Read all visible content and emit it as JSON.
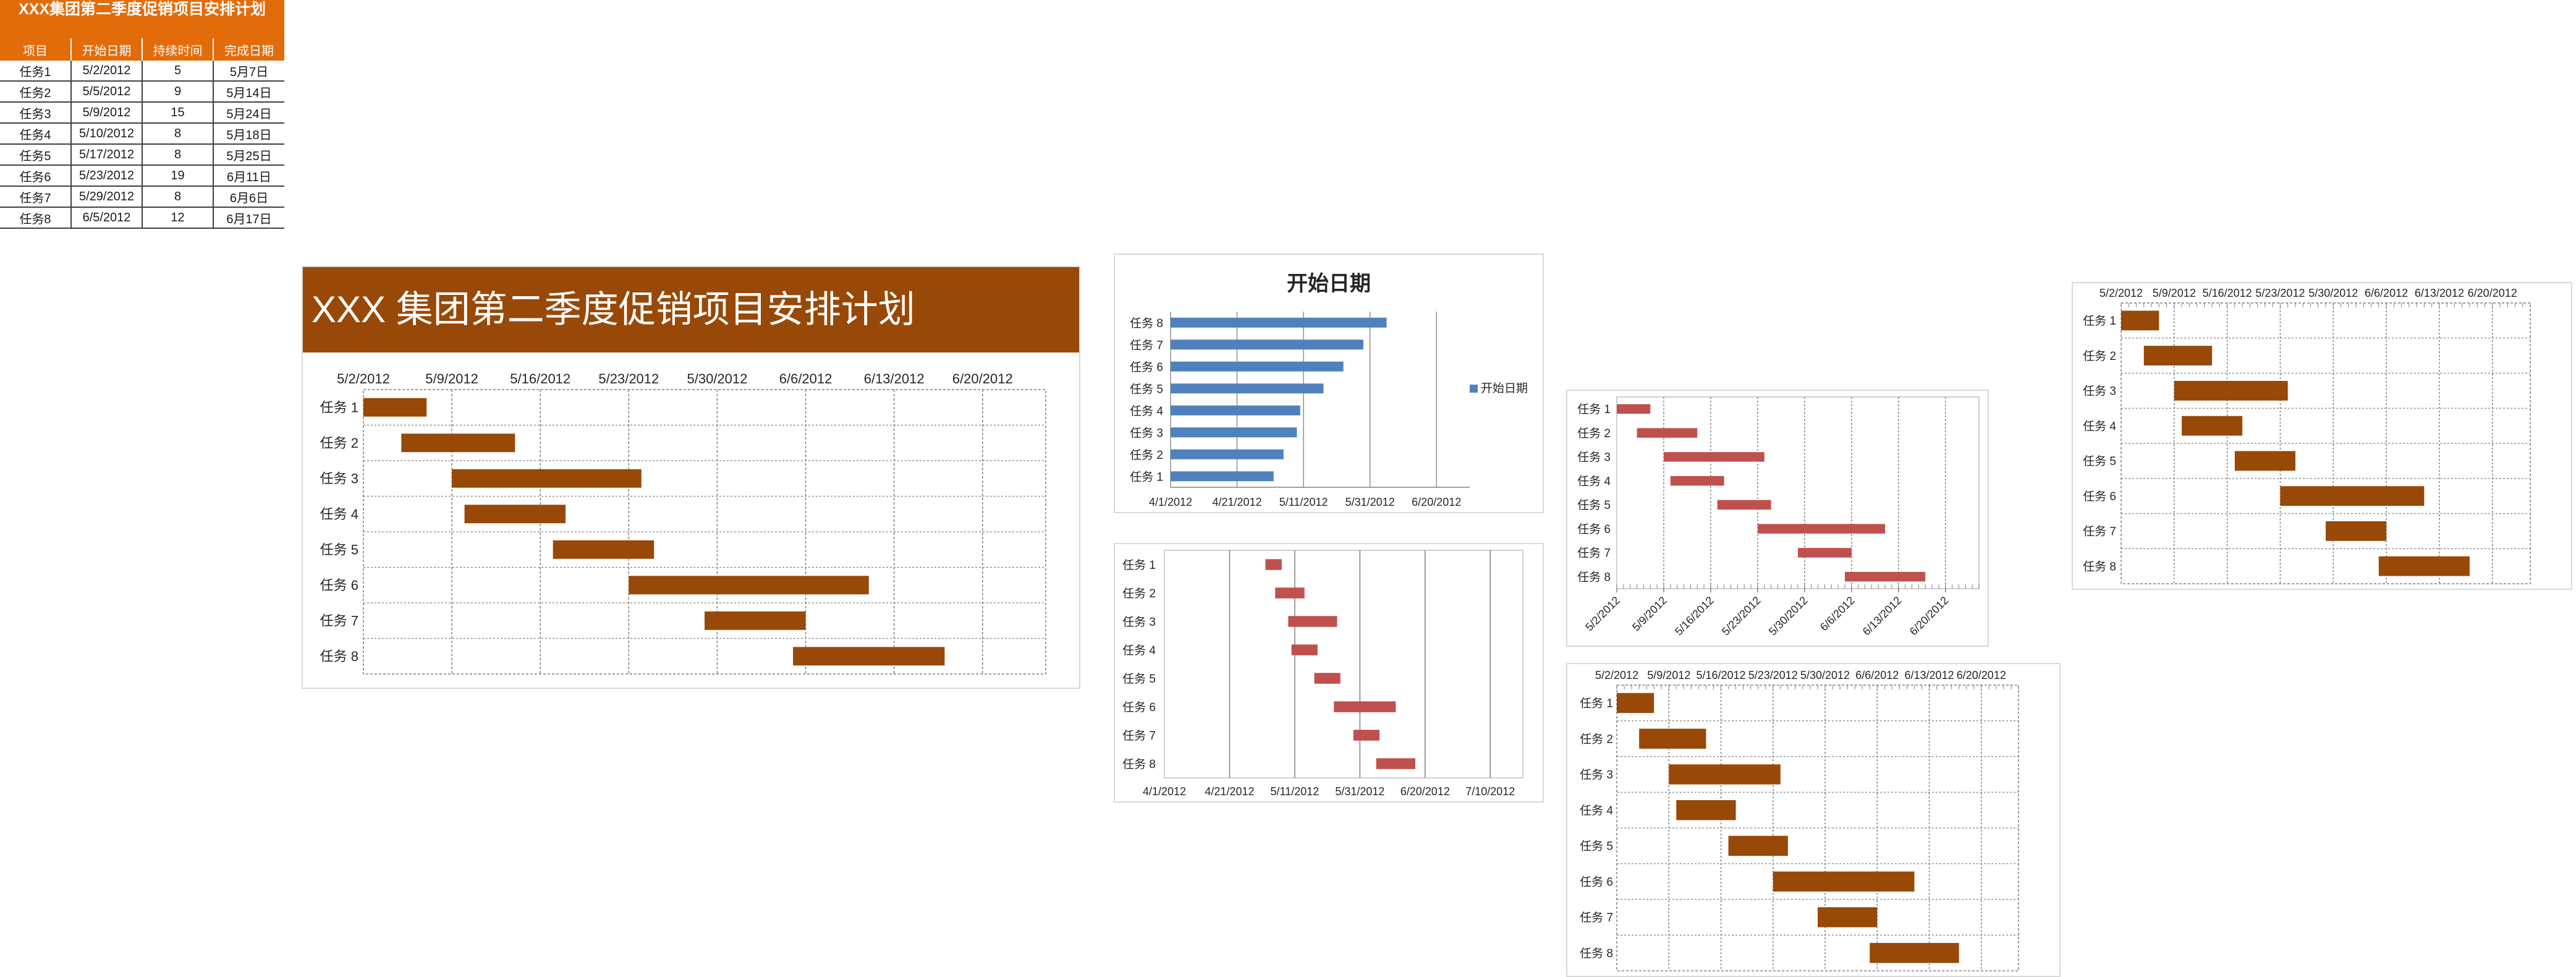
{
  "table": {
    "title": "XXX集团第二季度促销项目安排计划",
    "headers": [
      "项目",
      "开始日期",
      "持续时间",
      "完成日期"
    ],
    "rows": [
      [
        "任务1",
        "5/2/2012",
        "5",
        "5月7日"
      ],
      [
        "任务2",
        "5/5/2012",
        "9",
        "5月14日"
      ],
      [
        "任务3",
        "5/9/2012",
        "15",
        "5月24日"
      ],
      [
        "任务4",
        "5/10/2012",
        "8",
        "5月18日"
      ],
      [
        "任务5",
        "5/17/2012",
        "8",
        "5月25日"
      ],
      [
        "任务6",
        "5/23/2012",
        "19",
        "6月11日"
      ],
      [
        "任务7",
        "5/29/2012",
        "8",
        "6月6日"
      ],
      [
        "任务8",
        "6/5/2012",
        "12",
        "6月17日"
      ]
    ]
  },
  "colors": {
    "table_header": "#e36c0a",
    "gantt_bar": "#984807",
    "start_bar": "#4f81bd",
    "red_bar": "#c0504d"
  },
  "chart_data": [
    {
      "id": "main",
      "type": "bar",
      "title": "XXX 集团第二季度促销项目安排计划",
      "orientation": "horizontal-stacked-gantt",
      "categories": [
        "任务 1",
        "任务 2",
        "任务 3",
        "任务 4",
        "任务 5",
        "任务 6",
        "任务 7",
        "任务 8"
      ],
      "series": [
        {
          "start": [
            "2012-05-02",
            "2012-05-05",
            "2012-05-09",
            "2012-05-10",
            "2012-05-17",
            "2012-05-23",
            "2012-05-29",
            "2012-06-05"
          ],
          "duration_days": [
            5,
            9,
            15,
            8,
            8,
            19,
            8,
            12
          ]
        }
      ],
      "x_range": [
        "2012-05-02",
        "2012-06-25"
      ],
      "x_ticks": [
        "5/2/2012",
        "5/9/2012",
        "5/16/2012",
        "5/23/2012",
        "5/30/2012",
        "6/6/2012",
        "6/13/2012",
        "6/20/2012"
      ],
      "x_axis_position": "top",
      "grid": true,
      "bar_color": "#984807"
    },
    {
      "id": "start",
      "type": "bar",
      "title": "开始日期",
      "orientation": "horizontal",
      "categories": [
        "任务 1",
        "任务 2",
        "任务 3",
        "任务 4",
        "任务 5",
        "任务 6",
        "任务 7",
        "任务 8"
      ],
      "series": [
        {
          "name": "开始日期",
          "values": [
            "2012-05-02",
            "2012-05-05",
            "2012-05-09",
            "2012-05-10",
            "2012-05-17",
            "2012-05-23",
            "2012-05-29",
            "2012-06-05"
          ]
        }
      ],
      "x_range": [
        "2012-04-01",
        "2012-06-30"
      ],
      "x_ticks": [
        "4/1/2012",
        "4/21/2012",
        "5/11/2012",
        "5/31/2012",
        "6/20/2012"
      ],
      "legend": "right",
      "grid": true,
      "bar_color": "#4f81bd"
    },
    {
      "id": "red_a",
      "type": "bar",
      "orientation": "horizontal-stacked-gantt",
      "categories": [
        "任务 1",
        "任务 2",
        "任务 3",
        "任务 4",
        "任务 5",
        "任务 6",
        "任务 7",
        "任务 8"
      ],
      "series": [
        {
          "start": [
            "2012-05-02",
            "2012-05-05",
            "2012-05-09",
            "2012-05-10",
            "2012-05-17",
            "2012-05-23",
            "2012-05-29",
            "2012-06-05"
          ],
          "duration_days": [
            5,
            9,
            15,
            8,
            8,
            19,
            8,
            12
          ]
        }
      ],
      "x_range": [
        "2012-04-01",
        "2012-07-20"
      ],
      "x_ticks": [
        "4/1/2012",
        "4/21/2012",
        "5/11/2012",
        "5/31/2012",
        "6/20/2012",
        "7/10/2012"
      ],
      "grid": true,
      "bar_color": "#c0504d"
    },
    {
      "id": "red_b",
      "type": "bar",
      "orientation": "horizontal-stacked-gantt",
      "categories": [
        "任务 1",
        "任务 2",
        "任务 3",
        "任务 4",
        "任务 5",
        "任务 6",
        "任务 7",
        "任务 8"
      ],
      "series": [
        {
          "start": [
            "2012-05-02",
            "2012-05-05",
            "2012-05-09",
            "2012-05-10",
            "2012-05-17",
            "2012-05-23",
            "2012-05-29",
            "2012-06-05"
          ],
          "duration_days": [
            5,
            9,
            15,
            8,
            8,
            19,
            8,
            12
          ]
        }
      ],
      "x_range": [
        "2012-05-02",
        "2012-06-25"
      ],
      "x_ticks": [
        "5/2/2012",
        "5/9/2012",
        "5/16/2012",
        "5/23/2012",
        "5/30/2012",
        "6/6/2012",
        "6/13/2012",
        "6/20/2012"
      ],
      "x_tick_rotation": "diagonal",
      "grid": true,
      "bar_color": "#c0504d"
    },
    {
      "id": "gantt_b",
      "type": "bar",
      "orientation": "horizontal-stacked-gantt",
      "categories": [
        "任务 1",
        "任务 2",
        "任务 3",
        "任务 4",
        "任务 5",
        "任务 6",
        "任务 7",
        "任务 8"
      ],
      "series": [
        {
          "start": [
            "2012-05-02",
            "2012-05-05",
            "2012-05-09",
            "2012-05-10",
            "2012-05-17",
            "2012-05-23",
            "2012-05-29",
            "2012-06-05"
          ],
          "duration_days": [
            5,
            9,
            15,
            8,
            8,
            19,
            8,
            12
          ]
        }
      ],
      "x_range": [
        "2012-05-02",
        "2012-06-25"
      ],
      "x_ticks": [
        "5/2/2012",
        "5/9/2012",
        "5/16/2012",
        "5/23/2012",
        "5/30/2012",
        "6/6/2012",
        "6/13/2012",
        "6/20/2012"
      ],
      "x_axis_position": "top",
      "grid": true,
      "bar_color": "#984807"
    },
    {
      "id": "gantt_c",
      "type": "bar",
      "orientation": "horizontal-stacked-gantt",
      "categories": [
        "任务 1",
        "任务 2",
        "任务 3",
        "任务 4",
        "任务 5",
        "任务 6",
        "任务 7",
        "任务 8"
      ],
      "series": [
        {
          "start": [
            "2012-05-02",
            "2012-05-05",
            "2012-05-09",
            "2012-05-10",
            "2012-05-17",
            "2012-05-23",
            "2012-05-29",
            "2012-06-05"
          ],
          "duration_days": [
            5,
            9,
            15,
            8,
            8,
            19,
            8,
            12
          ]
        }
      ],
      "x_range": [
        "2012-05-02",
        "2012-06-25"
      ],
      "x_ticks": [
        "5/2/2012",
        "5/9/2012",
        "5/16/2012",
        "5/23/2012",
        "5/30/2012",
        "6/6/2012",
        "6/13/2012",
        "6/20/2012"
      ],
      "x_axis_position": "top",
      "grid": true,
      "bar_color": "#984807"
    }
  ]
}
